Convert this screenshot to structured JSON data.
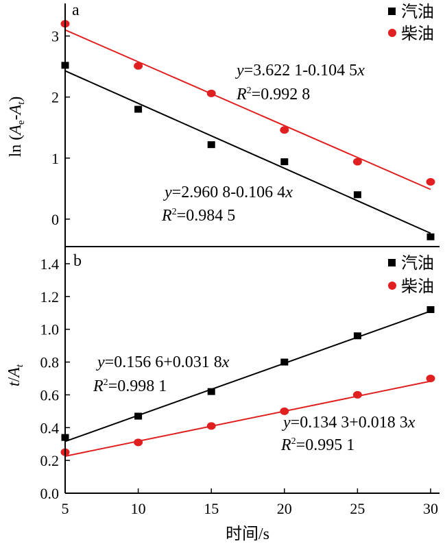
{
  "figure": {
    "x_axis_label": "时间/s",
    "x_ticks": [
      "5",
      "10",
      "15",
      "20",
      "25",
      "30"
    ]
  },
  "chart_data": [
    {
      "type": "scatter",
      "panel": "a",
      "ylabel": "ln (Ae-At)",
      "xlim": [
        5,
        30
      ],
      "ylim": [
        -0.45,
        3.5
      ],
      "y_ticks": [
        "0",
        "1",
        "2",
        "3"
      ],
      "legend_placement": "top-right",
      "grid": false,
      "series": [
        {
          "name": "汽油",
          "color": "#000000",
          "marker": "square",
          "x": [
            5,
            10,
            15,
            20,
            25,
            30
          ],
          "y": [
            2.52,
            1.8,
            1.22,
            0.94,
            0.4,
            -0.29
          ],
          "fit": {
            "intercept": 2.9608,
            "slope": -0.1064,
            "r2": 0.9845,
            "eq": {
              "y": "y",
              "rhs": "=2.960 8-0.106 4",
              "x": "x",
              "r": "R",
              "sup": "2",
              "r2_text": "=0.984 5"
            }
          }
        },
        {
          "name": "柴油",
          "color": "#e02020",
          "marker": "circle",
          "x": [
            5,
            10,
            15,
            20,
            25,
            30
          ],
          "y": [
            3.2,
            2.51,
            2.06,
            1.46,
            0.94,
            0.61
          ],
          "fit": {
            "intercept": 3.6221,
            "slope": -0.1045,
            "r2": 0.9928,
            "eq": {
              "y": "y",
              "rhs": "=3.622 1-0.104 5",
              "x": "x",
              "r": "R",
              "sup": "2",
              "r2_text": "=0.992 8"
            }
          }
        }
      ]
    },
    {
      "type": "scatter",
      "panel": "b",
      "ylabel": "t/At",
      "xlabel": "时间/s",
      "xlim": [
        5,
        30
      ],
      "ylim": [
        0.0,
        1.45
      ],
      "y_ticks": [
        "0.0",
        "0.2",
        "0.4",
        "0.6",
        "0.8",
        "1.0",
        "1.2",
        "1.4"
      ],
      "legend_placement": "top-right",
      "grid": false,
      "series": [
        {
          "name": "汽油",
          "color": "#000000",
          "marker": "square",
          "x": [
            5,
            10,
            15,
            20,
            25,
            30
          ],
          "y": [
            0.34,
            0.47,
            0.62,
            0.8,
            0.96,
            1.12
          ],
          "fit": {
            "intercept": 0.1566,
            "slope": 0.0318,
            "r2": 0.9981,
            "eq": {
              "y": "y",
              "rhs": "=0.156 6+0.031 8",
              "x": "x",
              "r": "R",
              "sup": "2",
              "r2_text": "=0.998 1"
            }
          }
        },
        {
          "name": "柴油",
          "color": "#e02020",
          "marker": "circle",
          "x": [
            5,
            10,
            15,
            20,
            25,
            30
          ],
          "y": [
            0.25,
            0.31,
            0.41,
            0.5,
            0.6,
            0.7
          ],
          "fit": {
            "intercept": 0.1343,
            "slope": 0.0183,
            "r2": 0.9951,
            "eq": {
              "y": "y",
              "rhs": "=0.134 3+0.018 3",
              "x": "x",
              "r": "R",
              "sup": "2",
              "r2_text": "=0.995 1"
            }
          }
        }
      ]
    }
  ]
}
